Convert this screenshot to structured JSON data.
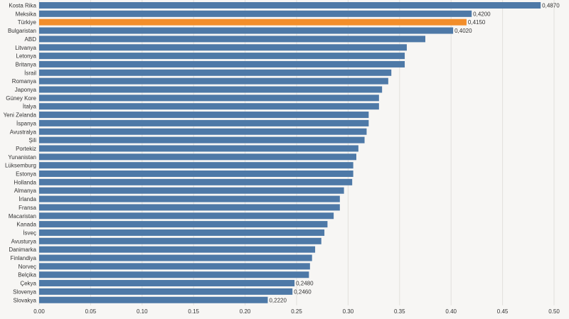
{
  "chart_data": {
    "type": "bar",
    "orientation": "horizontal",
    "title": "",
    "xlabel": "",
    "ylabel": "",
    "xlim": [
      0,
      0.5
    ],
    "xticks": [
      0.0,
      0.05,
      0.1,
      0.15,
      0.2,
      0.25,
      0.3,
      0.35,
      0.4,
      0.45,
      0.5
    ],
    "xtick_labels": [
      "0.00",
      "0.05",
      "0.10",
      "0.15",
      "0.20",
      "0.25",
      "0.30",
      "0.35",
      "0.40",
      "0.45",
      "0.50"
    ],
    "grid": true,
    "colors": {
      "default": "#4e79a7",
      "highlight": "#f28e2b"
    },
    "highlight_category": "Türkiye",
    "categories": [
      "Kosta Rika",
      "Meksika",
      "Türkiye",
      "Bulgaristan",
      "ABD",
      "Litvanya",
      "Letonya",
      "Britanya",
      "İsrail",
      "Romanya",
      "Japonya",
      "Güney Kore",
      "İtalya",
      "Yeni Zelanda",
      "İspanya",
      "Avustralya",
      "Şili",
      "Portekiz",
      "Yunanistan",
      "Lüksemburg",
      "Estonya",
      "Hollanda",
      "Almanya",
      "İrlanda",
      "Fransa",
      "Macaristan",
      "Kanada",
      "İsveç",
      "Avusturya",
      "Danimarka",
      "Finlandiya",
      "Norveç",
      "Belçika",
      "Çekya",
      "Slovenya",
      "Slovakya"
    ],
    "values": [
      0.487,
      0.42,
      0.415,
      0.402,
      0.375,
      0.357,
      0.355,
      0.355,
      0.342,
      0.339,
      0.333,
      0.33,
      0.33,
      0.32,
      0.32,
      0.318,
      0.316,
      0.31,
      0.308,
      0.305,
      0.305,
      0.304,
      0.296,
      0.292,
      0.292,
      0.286,
      0.28,
      0.277,
      0.274,
      0.268,
      0.265,
      0.263,
      0.262,
      0.248,
      0.246,
      0.222
    ],
    "value_labels": {
      "Kosta Rika": "0,4870",
      "Meksika": "0,4200",
      "Türkiye": "0,4150",
      "Bulgaristan": "0,4020",
      "Çekya": "0,2480",
      "Slovenya": "0,2460",
      "Slovakya": "0,2220"
    }
  }
}
